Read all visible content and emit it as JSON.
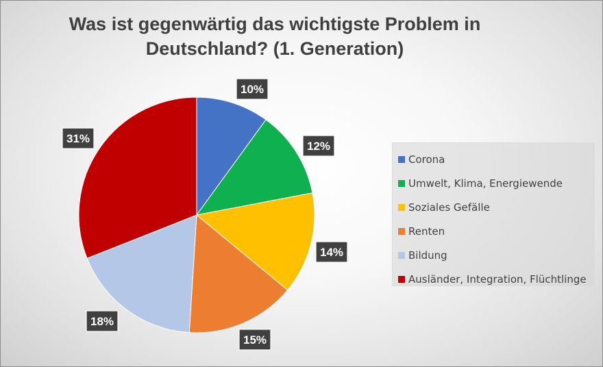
{
  "chart_data": {
    "type": "pie",
    "title": "Was ist gegenwärtig das wichtigste Problem in Deutschland? (1. Generation)",
    "legend_position": "right",
    "slices": [
      {
        "label": "Corona",
        "value": 10,
        "value_label": "10%",
        "color": "#4472C4"
      },
      {
        "label": "Umwelt, Klima, Energiewende",
        "value": 12,
        "value_label": "12%",
        "color": "#0EB04F"
      },
      {
        "label": "Soziales Gefälle",
        "value": 14,
        "value_label": "14%",
        "color": "#FFC000"
      },
      {
        "label": "Renten",
        "value": 15,
        "value_label": "15%",
        "color": "#ED7D31"
      },
      {
        "label": "Bildung",
        "value": 18,
        "value_label": "18%",
        "color": "#B4C7E7"
      },
      {
        "label": "Ausländer, Integration, Flüchtlinge",
        "value": 31,
        "value_label": "31%",
        "color": "#C00000"
      }
    ]
  }
}
